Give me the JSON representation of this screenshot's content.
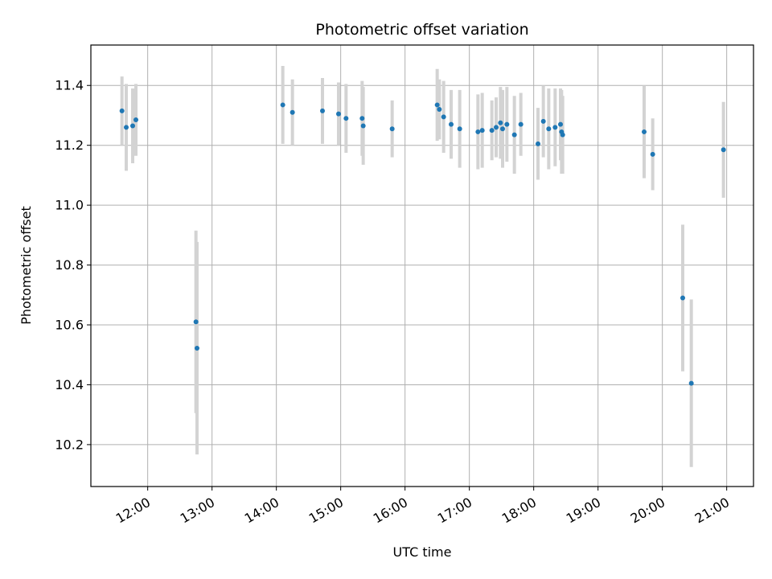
{
  "chart_data": {
    "type": "scatter",
    "title": "Photometric offset variation",
    "xlabel": "UTC time",
    "ylabel": "Photometric offset",
    "x_ticks": [
      "12:00",
      "13:00",
      "14:00",
      "15:00",
      "16:00",
      "17:00",
      "18:00",
      "19:00",
      "20:00",
      "21:00"
    ],
    "y_ticks": [
      "10.2",
      "10.4",
      "10.6",
      "10.8",
      "11.0",
      "11.2",
      "11.4"
    ],
    "xlim": [
      "11:07",
      "21:25"
    ],
    "ylim": [
      10.06,
      11.535
    ],
    "grid": true,
    "colors": {
      "point": "#1f77b4",
      "errorbar": "#d3d3d3",
      "grid": "#b0b0b0"
    },
    "series": [
      {
        "points": [
          {
            "x": "11:36",
            "y": 11.315,
            "err": 0.115
          },
          {
            "x": "11:40",
            "y": 11.26,
            "err": 0.145
          },
          {
            "x": "11:46",
            "y": 11.265,
            "err": 0.125
          },
          {
            "x": "11:49",
            "y": 11.285,
            "err": 0.12
          },
          {
            "x": "12:45",
            "y": 10.61,
            "err": 0.305
          },
          {
            "x": "12:46",
            "y": 10.522,
            "err": 0.355
          },
          {
            "x": "14:06",
            "y": 11.335,
            "err": 0.13
          },
          {
            "x": "14:15",
            "y": 11.31,
            "err": 0.11
          },
          {
            "x": "14:43",
            "y": 11.315,
            "err": 0.11
          },
          {
            "x": "14:58",
            "y": 11.305,
            "err": 0.105
          },
          {
            "x": "15:05",
            "y": 11.29,
            "err": 0.115
          },
          {
            "x": "15:20",
            "y": 11.29,
            "err": 0.125
          },
          {
            "x": "15:21",
            "y": 11.265,
            "err": 0.13
          },
          {
            "x": "15:48",
            "y": 11.255,
            "err": 0.095
          },
          {
            "x": "16:30",
            "y": 11.335,
            "err": 0.12
          },
          {
            "x": "16:32",
            "y": 11.32,
            "err": 0.1
          },
          {
            "x": "16:36",
            "y": 11.295,
            "err": 0.12
          },
          {
            "x": "16:43",
            "y": 11.27,
            "err": 0.115
          },
          {
            "x": "16:51",
            "y": 11.255,
            "err": 0.13
          },
          {
            "x": "17:08",
            "y": 11.245,
            "err": 0.125
          },
          {
            "x": "17:12",
            "y": 11.25,
            "err": 0.125
          },
          {
            "x": "17:21",
            "y": 11.25,
            "err": 0.1
          },
          {
            "x": "17:25",
            "y": 11.26,
            "err": 0.1
          },
          {
            "x": "17:29",
            "y": 11.275,
            "err": 0.12
          },
          {
            "x": "17:31",
            "y": 11.255,
            "err": 0.13
          },
          {
            "x": "17:35",
            "y": 11.27,
            "err": 0.125
          },
          {
            "x": "17:42",
            "y": 11.235,
            "err": 0.13
          },
          {
            "x": "17:48",
            "y": 11.27,
            "err": 0.105
          },
          {
            "x": "18:04",
            "y": 11.205,
            "err": 0.12
          },
          {
            "x": "18:09",
            "y": 11.28,
            "err": 0.12
          },
          {
            "x": "18:14",
            "y": 11.255,
            "err": 0.135
          },
          {
            "x": "18:20",
            "y": 11.26,
            "err": 0.13
          },
          {
            "x": "18:25",
            "y": 11.27,
            "err": 0.12
          },
          {
            "x": "18:26",
            "y": 11.245,
            "err": 0.14
          },
          {
            "x": "18:27",
            "y": 11.235,
            "err": 0.13
          },
          {
            "x": "19:43",
            "y": 11.245,
            "err": 0.155
          },
          {
            "x": "19:51",
            "y": 11.17,
            "err": 0.12
          },
          {
            "x": "20:19",
            "y": 10.69,
            "err": 0.245
          },
          {
            "x": "20:27",
            "y": 10.405,
            "err": 0.28
          },
          {
            "x": "20:57",
            "y": 11.185,
            "err": 0.16
          }
        ]
      }
    ]
  }
}
